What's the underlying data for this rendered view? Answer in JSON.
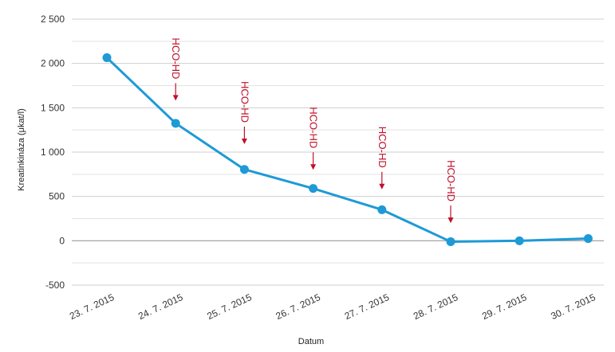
{
  "chart_data": {
    "type": "line",
    "title": "",
    "xlabel": "Datum",
    "ylabel": "Kreatinkináza (μkat/l)",
    "categories": [
      "23. 7. 2015",
      "24. 7. 2015",
      "25. 7. 2015",
      "26. 7. 2015",
      "27. 7. 2015",
      "28. 7. 2015",
      "29. 7. 2015",
      "30. 7. 2015"
    ],
    "y_ticks": [
      {
        "value": 2500,
        "label": "2 500"
      },
      {
        "value": 2000,
        "label": "2 000"
      },
      {
        "value": 1500,
        "label": "1 500"
      },
      {
        "value": 1000,
        "label": "1 000"
      },
      {
        "value": 500,
        "label": "500"
      },
      {
        "value": 0,
        "label": "0"
      },
      {
        "value": -500,
        "label": "-500"
      }
    ],
    "ylim": [
      -500,
      2500
    ],
    "grid": true,
    "series": [
      {
        "name": "",
        "color": "#1e9ad6",
        "values": [
          2065,
          1325,
          805,
          590,
          350,
          -10,
          0,
          25
        ]
      }
    ],
    "annotations": [
      {
        "text": "HCO-HD",
        "category_index": 1,
        "color": "#c0102a",
        "arrow_tip_value": 1580
      },
      {
        "text": "HCO-HD",
        "category_index": 2,
        "color": "#c0102a",
        "arrow_tip_value": 1090
      },
      {
        "text": "HCO-HD",
        "category_index": 3,
        "color": "#c0102a",
        "arrow_tip_value": 800
      },
      {
        "text": "HCO-HD",
        "category_index": 4,
        "color": "#c0102a",
        "arrow_tip_value": 580
      },
      {
        "text": "HCO-HD",
        "category_index": 5,
        "color": "#c0102a",
        "arrow_tip_value": 200
      }
    ]
  }
}
